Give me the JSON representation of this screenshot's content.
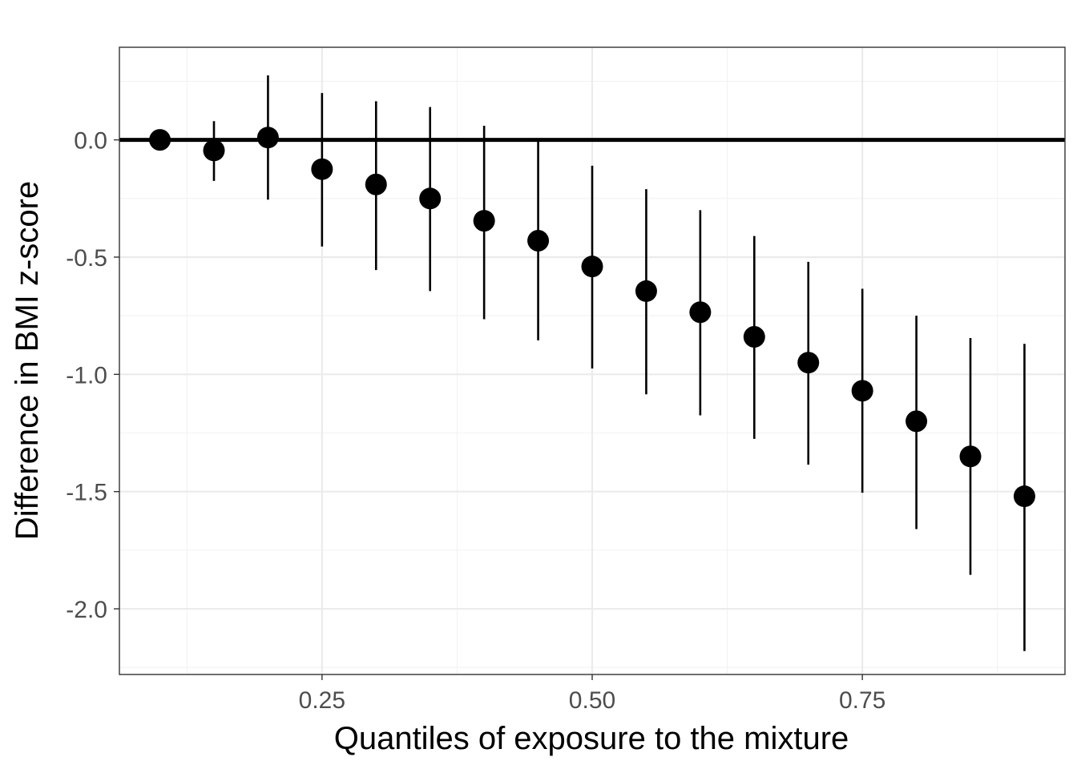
{
  "chart_data": {
    "type": "scatter",
    "title": "",
    "xlabel": "Quantiles of exposure to the mixture",
    "ylabel": "Difference in BMI z-score",
    "xlim": [
      0.0625,
      0.9375
    ],
    "ylim": [
      -2.28,
      0.395
    ],
    "x_ticks": [
      0.25,
      0.5,
      0.75
    ],
    "x_tick_labels": [
      "0.25",
      "0.50",
      "0.75"
    ],
    "y_ticks": [
      0.0,
      -0.5,
      -1.0,
      -1.5,
      -2.0
    ],
    "y_tick_labels": [
      "0.0",
      "-0.5",
      "-1.0",
      "-1.5",
      "-2.0"
    ],
    "grid": true,
    "reference_line_y": 0,
    "points": [
      {
        "x": 0.1,
        "y": 0.0,
        "lower": 0.0,
        "upper": 0.0
      },
      {
        "x": 0.15,
        "y": -0.045,
        "lower": -0.175,
        "upper": 0.08
      },
      {
        "x": 0.2,
        "y": 0.01,
        "lower": -0.255,
        "upper": 0.275
      },
      {
        "x": 0.25,
        "y": -0.125,
        "lower": -0.455,
        "upper": 0.2
      },
      {
        "x": 0.3,
        "y": -0.19,
        "lower": -0.555,
        "upper": 0.165
      },
      {
        "x": 0.35,
        "y": -0.25,
        "lower": -0.645,
        "upper": 0.14
      },
      {
        "x": 0.4,
        "y": -0.345,
        "lower": -0.765,
        "upper": 0.06
      },
      {
        "x": 0.45,
        "y": -0.43,
        "lower": -0.855,
        "upper": 0.0
      },
      {
        "x": 0.5,
        "y": -0.54,
        "lower": -0.975,
        "upper": -0.11
      },
      {
        "x": 0.55,
        "y": -0.645,
        "lower": -1.085,
        "upper": -0.21
      },
      {
        "x": 0.6,
        "y": -0.735,
        "lower": -1.175,
        "upper": -0.3
      },
      {
        "x": 0.65,
        "y": -0.84,
        "lower": -1.275,
        "upper": -0.41
      },
      {
        "x": 0.7,
        "y": -0.95,
        "lower": -1.385,
        "upper": -0.52
      },
      {
        "x": 0.75,
        "y": -1.07,
        "lower": -1.505,
        "upper": -0.635
      },
      {
        "x": 0.8,
        "y": -1.2,
        "lower": -1.66,
        "upper": -0.75
      },
      {
        "x": 0.85,
        "y": -1.35,
        "lower": -1.855,
        "upper": -0.845
      },
      {
        "x": 0.9,
        "y": -1.52,
        "lower": -2.18,
        "upper": -0.87
      }
    ]
  }
}
